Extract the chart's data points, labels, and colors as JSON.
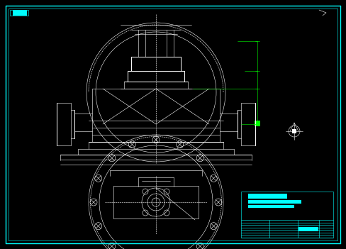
{
  "bg_color": "#000000",
  "border_color": "#00ffff",
  "draw_color": "#ffffff",
  "green_color": "#00ff00",
  "cyan_color": "#00ffff",
  "fig_width": 4.88,
  "fig_height": 3.51,
  "dpi": 100
}
